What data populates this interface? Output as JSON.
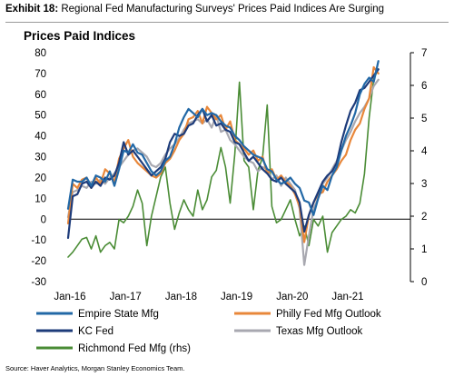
{
  "header": {
    "exhibit_label": "Exhibit 18:",
    "exhibit_text": "Regional Fed Manufacturing Surveys' Prices Paid Indices Are Surging"
  },
  "source": "Source: Haver Analytics, Morgan Stanley Economics Team.",
  "chart_data": {
    "type": "line",
    "title": "Prices Paid Indices",
    "xlabel": "",
    "ylabel": "",
    "x_start": "Jan-16",
    "x_ticks": [
      "Jan-16",
      "Jan-17",
      "Jan-18",
      "Jan-19",
      "Jan-20",
      "Jan-21"
    ],
    "ylim": [
      -30,
      80
    ],
    "yticks": [
      -30,
      -20,
      -10,
      0,
      10,
      20,
      30,
      40,
      50,
      60,
      70,
      80
    ],
    "y2lim": [
      0,
      7
    ],
    "y2ticks": [
      0,
      1,
      2,
      3,
      4,
      5,
      6,
      7
    ],
    "grid": false,
    "legend_position": "bottom",
    "series": [
      {
        "name": "Empire State Mfg",
        "color": "#2268a6",
        "axis": "left",
        "values": [
          5,
          19,
          18,
          18,
          20,
          16,
          21,
          20,
          18,
          23,
          16,
          24,
          33,
          32,
          36,
          32,
          31,
          27,
          23,
          21,
          23,
          28,
          30,
          36,
          44,
          49,
          53,
          51,
          49,
          53,
          50,
          51,
          50,
          47,
          45,
          44,
          40,
          38,
          35,
          33,
          31,
          30,
          29,
          24,
          23,
          19,
          17,
          18,
          20,
          17,
          15,
          9,
          8,
          2,
          10,
          16,
          14,
          21,
          25,
          33,
          40,
          45,
          51,
          60,
          65,
          68,
          66,
          76
        ]
      },
      {
        "name": "Philly Fed Mfg Outlook",
        "color": "#e8873a",
        "axis": "left",
        "values": [
          -2,
          17,
          15,
          19,
          20,
          15,
          20,
          17,
          24,
          22,
          18,
          29,
          34,
          38,
          30,
          27,
          25,
          23,
          21,
          20,
          22,
          27,
          29,
          33,
          38,
          41,
          48,
          49,
          52,
          46,
          54,
          51,
          48,
          50,
          43,
          47,
          38,
          36,
          34,
          31,
          33,
          28,
          30,
          22,
          24,
          19,
          21,
          18,
          16,
          12,
          6,
          -11,
          2,
          8,
          12,
          13,
          18,
          21,
          24,
          28,
          31,
          38,
          43,
          46,
          53,
          58,
          73,
          70
        ]
      },
      {
        "name": "KC Fed",
        "color": "#1d3b7a",
        "axis": "left",
        "values": [
          -9,
          11,
          12,
          17,
          18,
          15,
          18,
          16,
          20,
          19,
          21,
          27,
          37,
          31,
          33,
          30,
          27,
          24,
          21,
          23,
          25,
          29,
          37,
          41,
          40,
          41,
          45,
          46,
          50,
          53,
          47,
          50,
          45,
          46,
          43,
          42,
          37,
          36,
          32,
          28,
          30,
          27,
          24,
          22,
          19,
          18,
          20,
          17,
          15,
          13,
          8,
          -6,
          2,
          8,
          13,
          18,
          21,
          23,
          27,
          37,
          45,
          52,
          56,
          62,
          63,
          66,
          69,
          72
        ]
      },
      {
        "name": "Texas Mfg Outlook",
        "color": "#a8a8b0",
        "axis": "left",
        "values": [
          1,
          13,
          14,
          16,
          15,
          18,
          17,
          19,
          17,
          20,
          22,
          25,
          28,
          31,
          33,
          34,
          32,
          30,
          26,
          25,
          27,
          31,
          34,
          36,
          39,
          43,
          46,
          47,
          48,
          46,
          48,
          44,
          50,
          42,
          43,
          38,
          36,
          33,
          30,
          28,
          27,
          23,
          25,
          24,
          19,
          21,
          16,
          20,
          17,
          14,
          5,
          -22,
          -8,
          5,
          10,
          17,
          20,
          24,
          28,
          33,
          38,
          42,
          47,
          51,
          54,
          58,
          64,
          67
        ]
      },
      {
        "name": "Richmond Fed Mfg (rhs)",
        "color": "#4a8c35",
        "axis": "right",
        "values": [
          0.75,
          0.9,
          1.1,
          1.3,
          1.35,
          1.0,
          1.4,
          0.9,
          1.1,
          1.2,
          1.0,
          1.9,
          1.8,
          2.0,
          2.3,
          2.8,
          2.4,
          1.1,
          2.0,
          2.6,
          3.2,
          3.5,
          2.4,
          1.6,
          2.1,
          2.5,
          2.2,
          2.0,
          2.8,
          2.2,
          2.5,
          3.2,
          3.4,
          4.1,
          3.5,
          2.4,
          3.9,
          6.1,
          3.7,
          3.5,
          2.2,
          3.4,
          3.8,
          5.4,
          2.3,
          1.8,
          1.9,
          2.2,
          2.5,
          1.9,
          1.4,
          1.7,
          1.1,
          1.9,
          1.7,
          2.0,
          0.9,
          1.5,
          1.7,
          1.9,
          2.0,
          2.2,
          2.1,
          2.4,
          3.3,
          5.0,
          6.2,
          6.5
        ]
      }
    ]
  }
}
